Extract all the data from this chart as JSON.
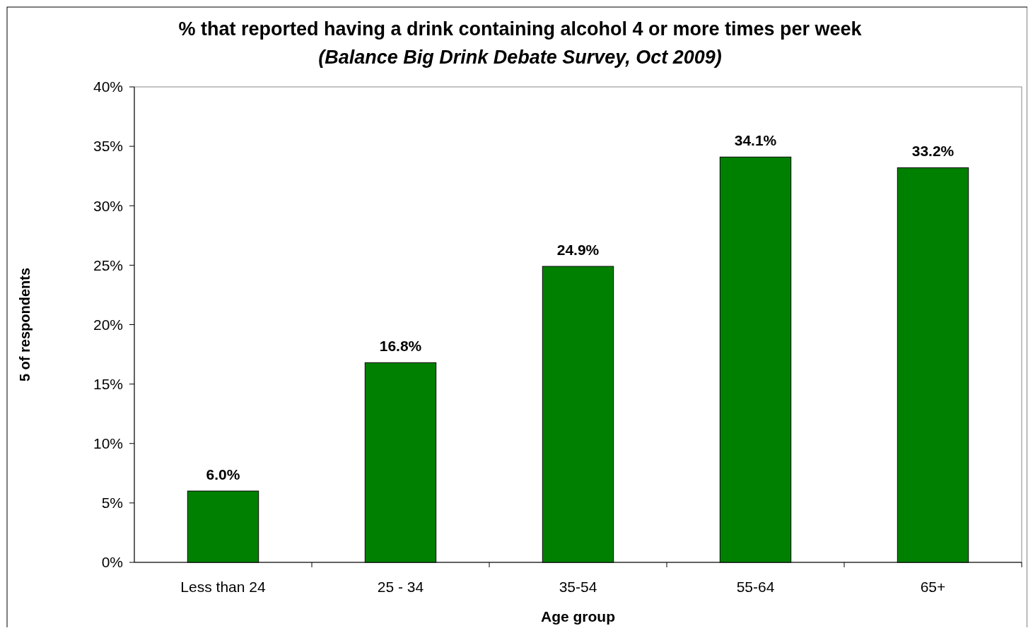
{
  "chart_data": {
    "type": "bar",
    "title": "% that reported having a drink containing alcohol 4 or more times per week",
    "subtitle": "(Balance Big Drink Debate Survey, Oct 2009)",
    "xlabel": "Age group",
    "ylabel": "5 of respondents",
    "categories": [
      "Less than 24",
      "25 - 34",
      "35-54",
      "55-64",
      "65+"
    ],
    "values": [
      6.0,
      16.8,
      24.9,
      34.1,
      33.2
    ],
    "value_labels": [
      "6.0%",
      "16.8%",
      "24.9%",
      "34.1%",
      "33.2%"
    ],
    "color": "#008000",
    "ylim": [
      0,
      40
    ],
    "yticks": [
      {
        "value": 0,
        "label": "0%"
      },
      {
        "value": 5,
        "label": "5%"
      },
      {
        "value": 10,
        "label": "10%"
      },
      {
        "value": 15,
        "label": "15%"
      },
      {
        "value": 20,
        "label": "20%"
      },
      {
        "value": 25,
        "label": "25%"
      },
      {
        "value": 30,
        "label": "30%"
      },
      {
        "value": 35,
        "label": "35%"
      },
      {
        "value": 40,
        "label": "40%"
      }
    ],
    "grid": false
  }
}
